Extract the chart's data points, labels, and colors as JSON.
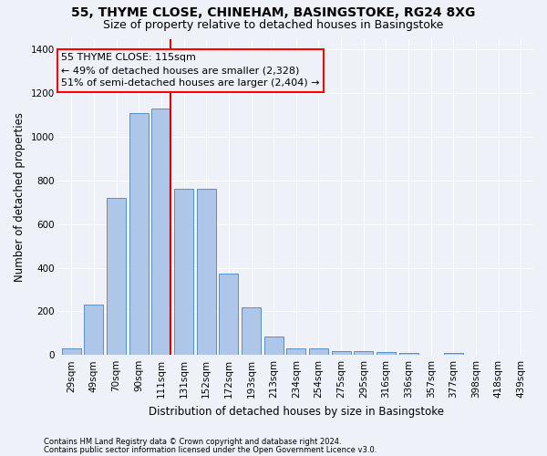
{
  "title1": "55, THYME CLOSE, CHINEHAM, BASINGSTOKE, RG24 8XG",
  "title2": "Size of property relative to detached houses in Basingstoke",
  "xlabel": "Distribution of detached houses by size in Basingstoke",
  "ylabel": "Number of detached properties",
  "categories": [
    "29sqm",
    "49sqm",
    "70sqm",
    "90sqm",
    "111sqm",
    "131sqm",
    "152sqm",
    "172sqm",
    "193sqm",
    "213sqm",
    "234sqm",
    "254sqm",
    "275sqm",
    "295sqm",
    "316sqm",
    "336sqm",
    "357sqm",
    "377sqm",
    "398sqm",
    "418sqm",
    "439sqm"
  ],
  "values": [
    28,
    230,
    720,
    1110,
    1130,
    760,
    760,
    375,
    220,
    85,
    28,
    30,
    18,
    18,
    15,
    10,
    0,
    10,
    0,
    0,
    0
  ],
  "bar_color": "#aec6e8",
  "bar_edge_color": "#5a8fc0",
  "vline_index": 4,
  "vline_color": "#cc0000",
  "annotation_line1": "55 THYME CLOSE: 115sqm",
  "annotation_line2": "← 49% of detached houses are smaller (2,328)",
  "annotation_line3": "51% of semi-detached houses are larger (2,404) →",
  "footer1": "Contains HM Land Registry data © Crown copyright and database right 2024.",
  "footer2": "Contains public sector information licensed under the Open Government Licence v3.0.",
  "ylim": [
    0,
    1450
  ],
  "yticks": [
    0,
    200,
    400,
    600,
    800,
    1000,
    1200,
    1400
  ],
  "background_color": "#eef2f8",
  "grid_color": "#ffffff",
  "title_fontsize": 10,
  "subtitle_fontsize": 9,
  "axis_label_fontsize": 8.5,
  "tick_fontsize": 7.5,
  "annotation_fontsize": 8,
  "footer_fontsize": 6
}
